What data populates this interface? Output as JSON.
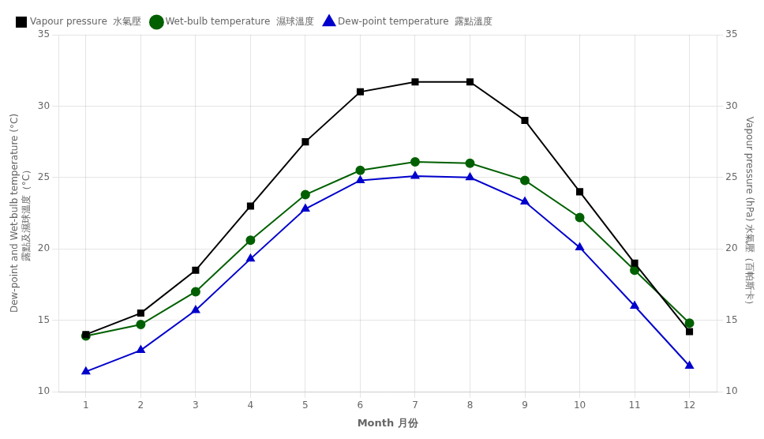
{
  "chart_data": {
    "type": "line",
    "x": [
      1,
      2,
      3,
      4,
      5,
      6,
      7,
      8,
      9,
      10,
      11,
      12
    ],
    "xlim": [
      0.5,
      12.5
    ],
    "xticks": [
      1,
      2,
      3,
      4,
      5,
      6,
      7,
      8,
      9,
      10,
      11,
      12
    ],
    "ylim": [
      10,
      35
    ],
    "yticks": [
      10,
      15,
      20,
      25,
      30,
      35
    ],
    "y2lim": [
      10,
      35
    ],
    "y2ticks": [
      10,
      15,
      20,
      25,
      30,
      35
    ],
    "xlabel": "Month 月份",
    "ylabel": "Dew-point and Wet-bulb temperature (°C)\n露點及濕球溫度（°C）",
    "y2label": "Vapour pressure (hPa) 水氣壓（百帕斯卡）",
    "grid": true,
    "legend": "upper left",
    "series": [
      {
        "name": "Vapour pressure  水氣壓",
        "color": "#000000",
        "marker": "square",
        "axis": "y2",
        "values": [
          14.0,
          15.5,
          18.5,
          23.0,
          27.5,
          31.0,
          31.7,
          31.7,
          29.0,
          24.0,
          19.0,
          14.2
        ]
      },
      {
        "name": "Wet-bulb temperature  濕球溫度",
        "color": "#006000",
        "marker": "circle",
        "values": [
          13.9,
          14.7,
          17.0,
          20.6,
          23.8,
          25.5,
          26.1,
          26.0,
          24.8,
          22.2,
          18.5,
          14.8
        ]
      },
      {
        "name": "Dew-point temperature  露點溫度",
        "color": "#0000cc",
        "marker": "triangle",
        "values": [
          11.4,
          12.9,
          15.7,
          19.3,
          22.8,
          24.8,
          25.1,
          25.0,
          23.3,
          20.1,
          16.0,
          11.8
        ]
      }
    ]
  }
}
